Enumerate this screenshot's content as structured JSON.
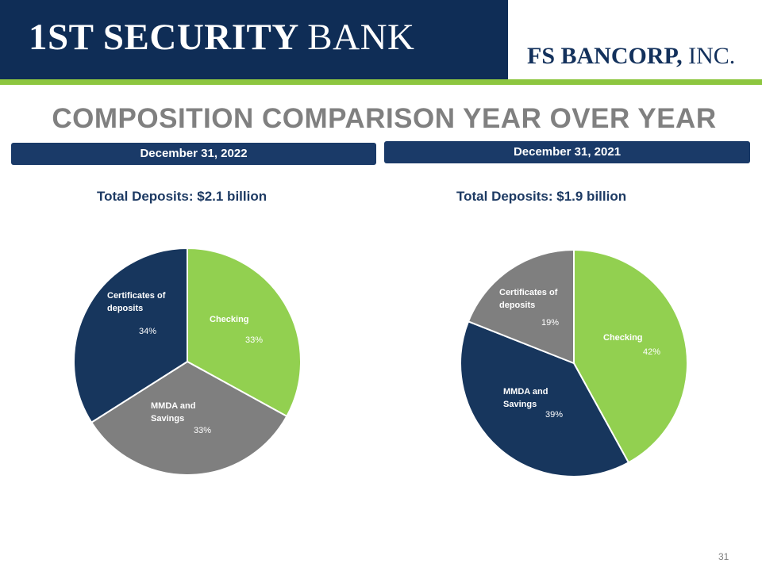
{
  "header": {
    "logo_left_part1": "1ST SECURITY",
    "logo_left_part2": "BANK",
    "logo_right_part1": "FS BANCORP,",
    "logo_right_part2": "INC.",
    "navy": "#0f2d56",
    "green": "#8dc63f"
  },
  "title": "COMPOSITION COMPARISON YEAR OVER YEAR",
  "panels": [
    {
      "date": "December 31, 2022",
      "subtitle": "Total Deposits:  $2.1 billion"
    },
    {
      "date": "December 31, 2021",
      "subtitle": "Total Deposits:  $1.9 billion"
    }
  ],
  "chart_data": [
    {
      "type": "pie",
      "title": "Total Deposits:  $2.1 billion",
      "slices": [
        {
          "label": [
            "Checking"
          ],
          "value": 33,
          "pct_label": "33%",
          "color": "#92d050"
        },
        {
          "label": [
            "MMDA and",
            "Savings"
          ],
          "value": 33,
          "pct_label": "33%",
          "color": "#7f7f7f"
        },
        {
          "label": [
            "Certificates of",
            "deposits"
          ],
          "value": 34,
          "pct_label": "34%",
          "color": "#17365d"
        }
      ]
    },
    {
      "type": "pie",
      "title": "Total Deposits:  $1.9 billion",
      "slices": [
        {
          "label": [
            "Checking"
          ],
          "value": 42,
          "pct_label": "42%",
          "color": "#92d050"
        },
        {
          "label": [
            "MMDA and",
            "Savings"
          ],
          "value": 39,
          "pct_label": "39%",
          "color": "#17365d"
        },
        {
          "label": [
            "Certificates of",
            "deposits"
          ],
          "value": 19,
          "pct_label": "19%",
          "color": "#7f7f7f"
        }
      ]
    }
  ],
  "page_number": "31"
}
